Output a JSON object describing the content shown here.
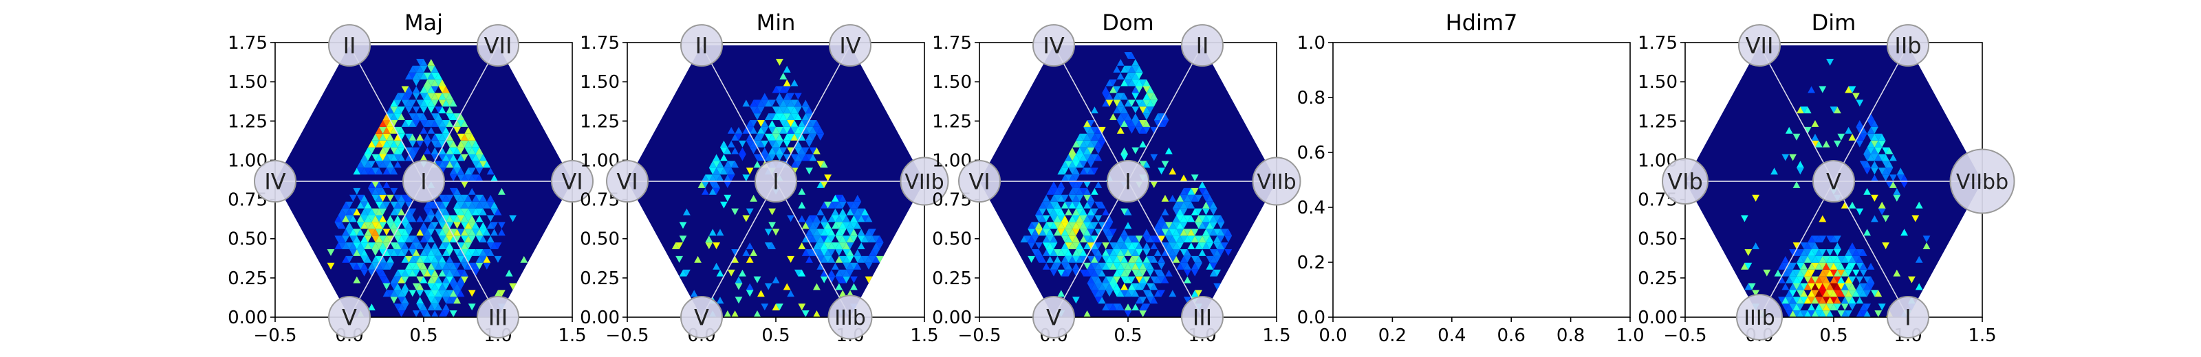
{
  "figure": {
    "panels": [
      "Maj",
      "Min",
      "Dom",
      "Hdim7",
      "Dim"
    ]
  },
  "colors": {
    "hex_background": "#08087a",
    "hex_cell": "#0a0a8c",
    "lines": "#d8d8e8",
    "node_fill": "#d9d9ec",
    "node_stroke": "#9a9a9a",
    "colormap": "jet"
  },
  "chart_data": [
    {
      "type": "heatmap",
      "title": "Maj",
      "xlim": [
        -0.5,
        1.5
      ],
      "ylim": [
        0.0,
        1.75
      ],
      "xticks": [
        "−0.5",
        "0.0",
        "0.5",
        "1.0",
        "1.5"
      ],
      "yticks": [
        "0.00",
        "0.25",
        "0.50",
        "0.75",
        "1.00",
        "1.25",
        "1.50",
        "1.75"
      ],
      "grid": false,
      "nodes": [
        {
          "label": "I",
          "x": 0.5,
          "y": 0.866,
          "size": 1
        },
        {
          "label": "II",
          "x": 0.0,
          "y": 1.732,
          "size": 1
        },
        {
          "label": "VII",
          "x": 1.0,
          "y": 1.732,
          "size": 1
        },
        {
          "label": "IV",
          "x": -0.5,
          "y": 0.866,
          "size": 1
        },
        {
          "label": "VI",
          "x": 1.5,
          "y": 0.866,
          "size": 1
        },
        {
          "label": "V",
          "x": 0.0,
          "y": 0.0,
          "size": 1
        },
        {
          "label": "III",
          "x": 1.0,
          "y": 0.0,
          "size": 1
        }
      ],
      "hotspots": [
        {
          "x": 0.2,
          "y": 1.2,
          "intensity": 0.75
        },
        {
          "x": 0.65,
          "y": 1.45,
          "intensity": 0.55
        },
        {
          "x": 0.8,
          "y": 1.15,
          "intensity": 0.6
        },
        {
          "x": 0.2,
          "y": 0.55,
          "intensity": 0.6
        },
        {
          "x": 0.75,
          "y": 0.55,
          "intensity": 0.5
        },
        {
          "x": 0.5,
          "y": 0.25,
          "intensity": 0.45
        }
      ]
    },
    {
      "type": "heatmap",
      "title": "Min",
      "xlim": [
        -0.5,
        1.5
      ],
      "ylim": [
        0.0,
        1.75
      ],
      "xticks": [
        "−0.5",
        "0.0",
        "0.5",
        "1.0",
        "1.5"
      ],
      "yticks": [
        "0.00",
        "0.25",
        "0.50",
        "0.75",
        "1.00",
        "1.25",
        "1.50",
        "1.75"
      ],
      "grid": false,
      "nodes": [
        {
          "label": "I",
          "x": 0.5,
          "y": 0.866,
          "size": 1
        },
        {
          "label": "II",
          "x": 0.0,
          "y": 1.732,
          "size": 1
        },
        {
          "label": "IV",
          "x": 1.0,
          "y": 1.732,
          "size": 1
        },
        {
          "label": "VI",
          "x": -0.5,
          "y": 0.866,
          "size": 1
        },
        {
          "label": "VIIb",
          "x": 1.5,
          "y": 0.866,
          "size": 1.15
        },
        {
          "label": "V",
          "x": 0.0,
          "y": 0.0,
          "size": 1
        },
        {
          "label": "IIIb",
          "x": 1.0,
          "y": 0.0,
          "size": 1.05
        }
      ],
      "hotspots": [
        {
          "x": 0.0,
          "y": 1.05,
          "intensity": 0.45
        },
        {
          "x": 0.95,
          "y": 0.5,
          "intensity": 0.4
        },
        {
          "x": 0.55,
          "y": 1.2,
          "intensity": 0.35
        }
      ]
    },
    {
      "type": "heatmap",
      "title": "Dom",
      "xlim": [
        -0.5,
        1.5
      ],
      "ylim": [
        0.0,
        1.75
      ],
      "xticks": [
        "−0.5",
        "0.0",
        "0.5",
        "1.0",
        "1.5"
      ],
      "yticks": [
        "0.00",
        "0.25",
        "0.50",
        "0.75",
        "1.00",
        "1.25",
        "1.50",
        "1.75"
      ],
      "grid": false,
      "nodes": [
        {
          "label": "I",
          "x": 0.5,
          "y": 0.866,
          "size": 1
        },
        {
          "label": "IV",
          "x": 0.0,
          "y": 1.732,
          "size": 1
        },
        {
          "label": "II",
          "x": 1.0,
          "y": 1.732,
          "size": 1
        },
        {
          "label": "VI",
          "x": -0.5,
          "y": 0.866,
          "size": 1
        },
        {
          "label": "VIIb",
          "x": 1.5,
          "y": 0.866,
          "size": 1.15
        },
        {
          "label": "V",
          "x": 0.0,
          "y": 0.0,
          "size": 1
        },
        {
          "label": "III",
          "x": 1.0,
          "y": 0.0,
          "size": 1
        }
      ],
      "hotspots": [
        {
          "x": 0.05,
          "y": 1.1,
          "intensity": 0.5
        },
        {
          "x": 0.1,
          "y": 0.55,
          "intensity": 0.55
        },
        {
          "x": 0.5,
          "y": 0.3,
          "intensity": 0.45
        },
        {
          "x": 0.6,
          "y": 1.45,
          "intensity": 0.4
        },
        {
          "x": 0.95,
          "y": 0.55,
          "intensity": 0.4
        }
      ]
    },
    {
      "type": "heatmap",
      "title": "Hdim7",
      "empty": true,
      "xlim": [
        0.0,
        1.0
      ],
      "ylim": [
        0.0,
        1.0
      ],
      "xticks": [
        "0.0",
        "0.2",
        "0.4",
        "0.6",
        "0.8",
        "1.0"
      ],
      "yticks": [
        "0.0",
        "0.2",
        "0.4",
        "0.6",
        "0.8",
        "1.0"
      ],
      "grid": false
    },
    {
      "type": "heatmap",
      "title": "Dim",
      "xlim": [
        -0.5,
        1.5
      ],
      "ylim": [
        0.0,
        1.75
      ],
      "xticks": [
        "−0.5",
        "0.0",
        "0.5",
        "1.0",
        "1.5"
      ],
      "yticks": [
        "0.00",
        "0.25",
        "0.50",
        "0.75",
        "1.00",
        "1.25",
        "1.50",
        "1.75"
      ],
      "grid": false,
      "nodes": [
        {
          "label": "V",
          "x": 0.5,
          "y": 0.866,
          "size": 1
        },
        {
          "label": "VII",
          "x": 0.0,
          "y": 1.732,
          "size": 1
        },
        {
          "label": "IIb",
          "x": 1.0,
          "y": 1.732,
          "size": 1
        },
        {
          "label": "VIb",
          "x": -0.5,
          "y": 0.866,
          "size": 1.1
        },
        {
          "label": "VIIbb",
          "x": 1.5,
          "y": 0.866,
          "size": 1.55
        },
        {
          "label": "IIIb",
          "x": 0.0,
          "y": 0.0,
          "size": 1.1
        },
        {
          "label": "I",
          "x": 1.0,
          "y": 0.0,
          "size": 1
        }
      ],
      "hotspots": [
        {
          "x": 0.0,
          "y": 1.5,
          "intensity": 0.45
        },
        {
          "x": 0.45,
          "y": 0.2,
          "intensity": 1.0
        },
        {
          "x": 0.9,
          "y": 1.1,
          "intensity": 0.35
        }
      ]
    }
  ]
}
